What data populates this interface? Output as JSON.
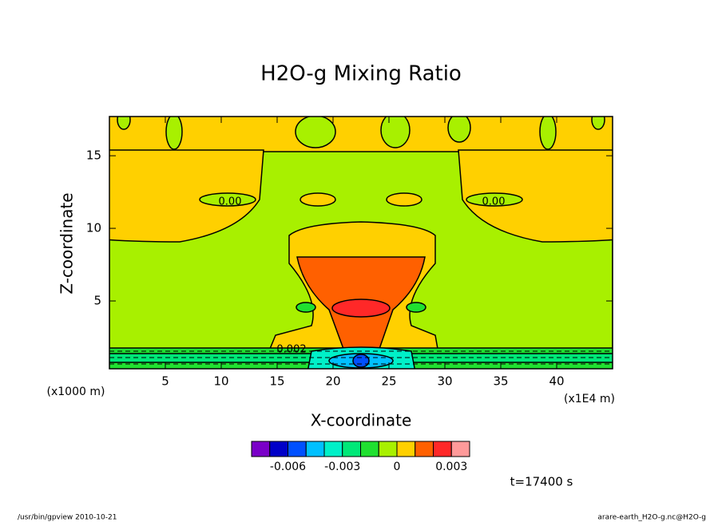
{
  "chart_data": {
    "type": "contour",
    "title": "H2O-g Mixing Ratio",
    "xlabel": "X-coordinate",
    "ylabel": "Z-coordinate",
    "xunits": "(x1E4 m)",
    "yunits": "(x1000 m)",
    "xlim": [
      0,
      45
    ],
    "ylim": [
      0.33,
      17.7
    ],
    "xticks": [
      5,
      10,
      15,
      20,
      25,
      30,
      35,
      40
    ],
    "yticks": [
      5,
      10,
      15
    ],
    "contour_labels": [
      "0.00",
      "0.00",
      "0.002"
    ],
    "colorbar": {
      "lim": [
        -0.008,
        0.004
      ],
      "ticks": [
        -0.006,
        -0.003,
        0,
        0.003
      ],
      "colors": [
        "#7a00c8",
        "#0000c8",
        "#0050ff",
        "#00c0ff",
        "#00f0c8",
        "#00e878",
        "#20e030",
        "#a8f000",
        "#ffd000",
        "#ff6000",
        "#ff2828",
        "#ff9a9a"
      ]
    },
    "time_label": "t=17400 s",
    "footer_left": "/usr/bin/gpview  2010-10-21",
    "footer_right": "arare-earth_H2O-g.nc@H2O-g"
  }
}
